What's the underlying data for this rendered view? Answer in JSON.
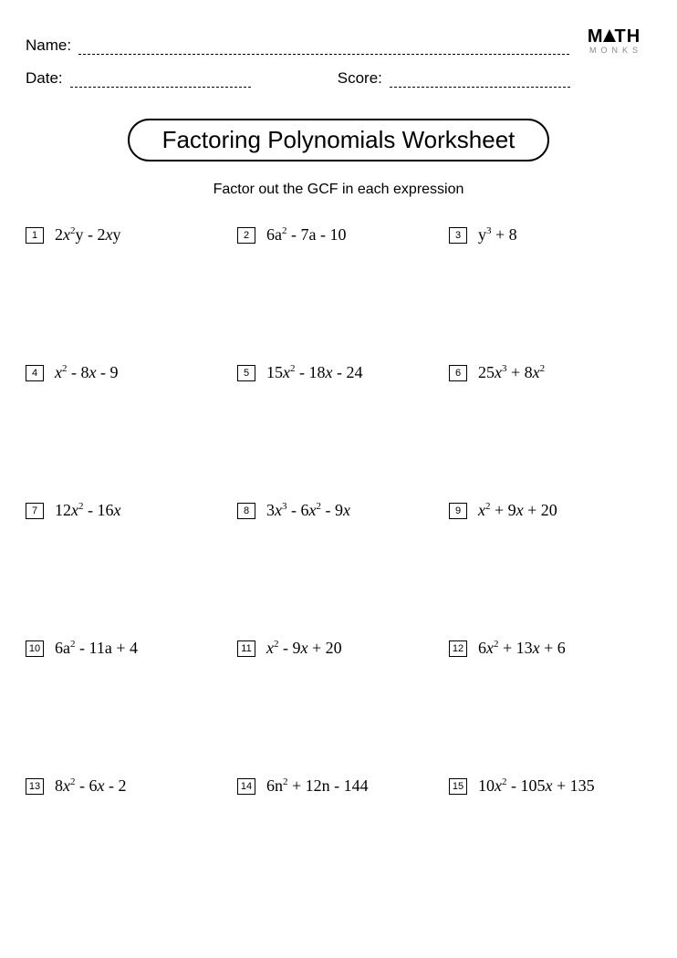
{
  "header": {
    "name_label": "Name:",
    "date_label": "Date:",
    "score_label": "Score:"
  },
  "logo": {
    "line1_left": "M",
    "line1_right": "TH",
    "line2": "MONKS"
  },
  "title": "Factoring Polynomials Worksheet",
  "subtitle": "Factor out the GCF in each expression",
  "problems": [
    {
      "n": "1",
      "html": "2<i>x</i><sup>2</sup>y - 2<i>x</i>y"
    },
    {
      "n": "2",
      "html": "6a<sup>2</sup> - 7a - 10"
    },
    {
      "n": "3",
      "html": "y<sup>3</sup> + 8"
    },
    {
      "n": "4",
      "html": "<i>x</i><sup>2</sup> - 8<i>x</i> - 9"
    },
    {
      "n": "5",
      "html": "15<i>x</i><sup>2</sup> - 18<i>x</i> - 24"
    },
    {
      "n": "6",
      "html": "25<i>x</i><sup>3</sup> + 8<i>x</i><sup>2</sup>"
    },
    {
      "n": "7",
      "html": "12<i>x</i><sup>2</sup> - 16<i>x</i>"
    },
    {
      "n": "8",
      "html": "3<i>x</i><sup>3</sup> - 6<i>x</i><sup>2</sup> - 9<i>x</i>"
    },
    {
      "n": "9",
      "html": "<i>x</i><sup>2</sup> + 9<i>x</i> + 20"
    },
    {
      "n": "10",
      "html": "6a<sup>2</sup> - 11a + 4"
    },
    {
      "n": "11",
      "html": "<i>x</i><sup>2</sup> - 9<i>x</i> + 20"
    },
    {
      "n": "12",
      "html": "6<i>x</i><sup>2</sup> + 13<i>x</i> + 6"
    },
    {
      "n": "13",
      "html": "8<i>x</i><sup>2</sup> - 6<i>x</i> - 2"
    },
    {
      "n": "14",
      "html": "6n<sup>2</sup> + 12n - 144"
    },
    {
      "n": "15",
      "html": "10<i>x</i><sup>2</sup> - 105<i>x</i> + 135"
    }
  ],
  "styling": {
    "page_bg": "#ffffff",
    "text_color": "#000000",
    "border_color": "#000000",
    "logo_sub_color": "#888888",
    "title_fontsize": 26,
    "subtitle_fontsize": 16,
    "expr_fontsize": 18,
    "grid_cols": 3,
    "row_gap": 130
  }
}
